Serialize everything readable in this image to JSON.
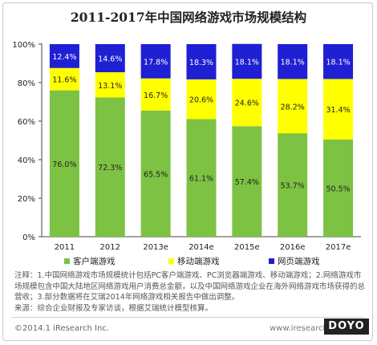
{
  "title": "2011-2017年中国网络游戏市场规模结构",
  "chart_data": {
    "type": "bar",
    "stacked": true,
    "categories": [
      "2011",
      "2012",
      "2013e",
      "2014e",
      "2015e",
      "2016e",
      "2017e"
    ],
    "series": [
      {
        "name": "客户端游戏",
        "color": "#7dc242",
        "values": [
          76.0,
          72.3,
          65.5,
          61.1,
          57.4,
          53.7,
          50.5
        ]
      },
      {
        "name": "移动端游戏",
        "color": "#ffff00",
        "values": [
          11.6,
          13.1,
          16.7,
          20.6,
          24.6,
          28.2,
          31.4
        ]
      },
      {
        "name": "网页端游戏",
        "color": "#1f1fd3",
        "values": [
          12.4,
          14.6,
          17.8,
          18.3,
          18.1,
          18.1,
          18.1
        ]
      }
    ],
    "value_labels": [
      [
        "76.0%",
        "72.3%",
        "65.5%",
        "61.1%",
        "57.4%",
        "53.7%",
        "50.5%"
      ],
      [
        "11.6%",
        "13.1%",
        "16.7%",
        "20.6%",
        "24.6%",
        "28.2%",
        "31.4%"
      ],
      [
        "12.4%",
        "14.6%",
        "17.8%",
        "18.3%",
        "18.1%",
        "18.1%",
        "18.1%"
      ]
    ],
    "y_ticks": [
      "0%",
      "20%",
      "40%",
      "60%",
      "80%",
      "100%"
    ],
    "ylim": [
      0,
      100
    ],
    "grid": false,
    "legend_position": "bottom"
  },
  "notes": [
    "注释：1.中国网络游戏市场规模统计包括PC客户端游戏、PC浏览器端游戏、移动端游戏；2.网络游戏市场规模包含中国大陆地区网络游戏用户消费总金额，以及中国网络游戏企业在海外网络游戏市场获得的总营收；3.部分数据将在艾瑞2014年网络游戏相关报告中做出调整。",
    "来源：综合企业财报及专家访谈，根据艾瑞统计模型核算。"
  ],
  "footer": {
    "copyright": "©2014.1 iResearch Inc.",
    "website": "www.iresearch.com.cn",
    "logo": "DOYO"
  }
}
